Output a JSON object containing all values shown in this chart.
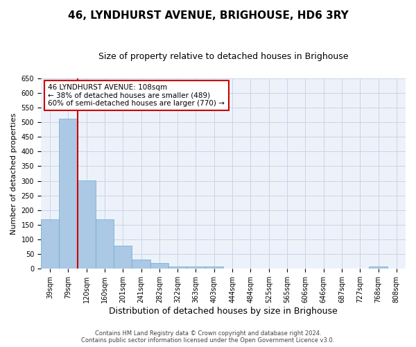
{
  "title": "46, LYNDHURST AVENUE, BRIGHOUSE, HD6 3RY",
  "subtitle": "Size of property relative to detached houses in Brighouse",
  "xlabel": "Distribution of detached houses by size in Brighouse",
  "ylabel": "Number of detached properties",
  "bar_values": [
    168,
    511,
    302,
    168,
    78,
    32,
    20,
    7,
    8,
    8,
    0,
    0,
    0,
    0,
    0,
    0,
    0,
    0,
    8,
    0
  ],
  "bar_labels": [
    "39sqm",
    "79sqm",
    "120sqm",
    "160sqm",
    "201sqm",
    "241sqm",
    "282sqm",
    "322sqm",
    "363sqm",
    "403sqm",
    "444sqm",
    "484sqm",
    "525sqm",
    "565sqm",
    "606sqm",
    "646sqm",
    "687sqm",
    "727sqm",
    "768sqm",
    "808sqm"
  ],
  "bar_color": "#abc8e4",
  "bar_edge_color": "#6aaad4",
  "grid_color": "#c8d4e8",
  "background_color": "#edf2fa",
  "vline_color": "#cc0000",
  "annotation_text": "46 LYNDHURST AVENUE: 108sqm\n← 38% of detached houses are smaller (489)\n60% of semi-detached houses are larger (770) →",
  "annotation_box_color": "#ffffff",
  "annotation_box_edge": "#cc0000",
  "footer": "Contains HM Land Registry data © Crown copyright and database right 2024.\nContains public sector information licensed under the Open Government Licence v3.0.",
  "ylim": [
    0,
    650
  ],
  "yticks": [
    0,
    50,
    100,
    150,
    200,
    250,
    300,
    350,
    400,
    450,
    500,
    550,
    600,
    650
  ],
  "title_fontsize": 11,
  "subtitle_fontsize": 9,
  "ylabel_fontsize": 8,
  "xlabel_fontsize": 9,
  "tick_fontsize": 7,
  "footer_fontsize": 6
}
